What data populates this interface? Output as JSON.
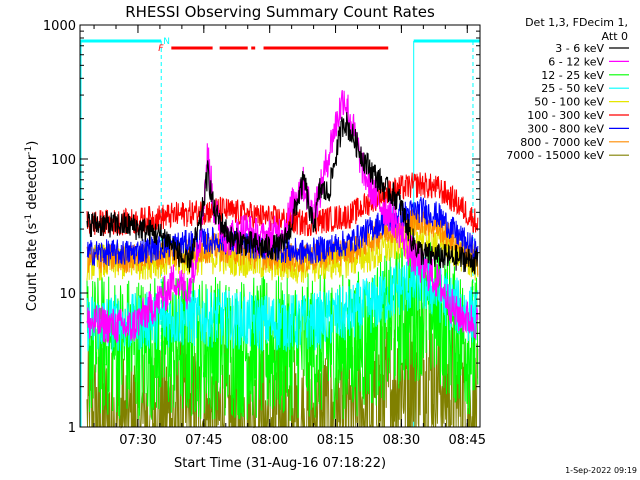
{
  "chart_data": {
    "type": "line",
    "title": "RHESSI Observing Summary Count Rates",
    "xlabel": "Start Time (31-Aug-16 07:18:22)",
    "ylabel_main": "Count Rate (s",
    "ylabel_sup1": "-1",
    "ylabel_mid": " detector",
    "ylabel_sup2": "-1",
    "ylabel_end": ")",
    "y_scale": "log",
    "ylim": [
      1,
      1000
    ],
    "xlim_minutes": [
      -1.6,
      89.5
    ],
    "y_ticks": [
      {
        "value": 1,
        "label": "1"
      },
      {
        "value": 10,
        "label": "10"
      },
      {
        "value": 100,
        "label": "100"
      },
      {
        "value": 1000,
        "label": "1000"
      }
    ],
    "x_ticks": [
      {
        "minute": 11.6,
        "label": "07:30"
      },
      {
        "minute": 26.6,
        "label": "07:45"
      },
      {
        "minute": 41.6,
        "label": "08:00"
      },
      {
        "minute": 56.6,
        "label": "08:15"
      },
      {
        "minute": 71.6,
        "label": "08:30"
      },
      {
        "minute": 86.6,
        "label": "08:45"
      }
    ],
    "legend_header": [
      "Det 1,3, FDecim 1,",
      "Att 0"
    ],
    "legend_placement": "right",
    "series": [
      {
        "name": "3 - 6 keV",
        "color": "#000000",
        "points": [
          [
            0,
            33
          ],
          [
            10,
            32
          ],
          [
            18,
            26
          ],
          [
            23,
            16
          ],
          [
            26,
            35
          ],
          [
            27.5,
            80
          ],
          [
            29,
            40
          ],
          [
            33,
            25
          ],
          [
            40,
            22
          ],
          [
            44,
            22
          ],
          [
            46,
            28
          ],
          [
            48,
            50
          ],
          [
            49.5,
            70
          ],
          [
            51,
            35
          ],
          [
            52,
            35
          ],
          [
            53,
            60
          ],
          [
            55,
            55
          ],
          [
            57,
            120
          ],
          [
            58.5,
            200
          ],
          [
            60,
            160
          ],
          [
            63,
            100
          ],
          [
            65,
            80
          ],
          [
            68,
            60
          ],
          [
            71,
            50
          ],
          [
            74,
            25
          ],
          [
            76,
            20
          ],
          [
            78,
            19
          ],
          [
            86,
            18
          ],
          [
            89,
            17
          ]
        ]
      },
      {
        "name": "6 - 12 keV",
        "color": "#ff00ff",
        "points": [
          [
            0,
            6
          ],
          [
            10,
            5.5
          ],
          [
            18,
            10
          ],
          [
            20,
            13
          ],
          [
            23,
            10
          ],
          [
            26,
            30
          ],
          [
            27.5,
            110
          ],
          [
            29,
            40
          ],
          [
            32,
            25
          ],
          [
            36,
            30
          ],
          [
            40,
            25
          ],
          [
            45,
            30
          ],
          [
            48,
            60
          ],
          [
            49.5,
            65
          ],
          [
            51,
            40
          ],
          [
            53,
            55
          ],
          [
            56,
            150
          ],
          [
            58.5,
            300
          ],
          [
            60,
            200
          ],
          [
            63,
            80
          ],
          [
            66,
            50
          ],
          [
            70,
            35
          ],
          [
            73,
            22
          ],
          [
            75,
            17
          ],
          [
            80,
            12
          ],
          [
            84,
            7
          ],
          [
            89,
            6
          ]
        ]
      },
      {
        "name": "12 - 25 keV",
        "color": "#00ff00",
        "points": [
          [
            0,
            4
          ],
          [
            10,
            4
          ],
          [
            20,
            4
          ],
          [
            30,
            4
          ],
          [
            40,
            3.8
          ],
          [
            50,
            4
          ],
          [
            60,
            4
          ],
          [
            66,
            5
          ],
          [
            71,
            6.5
          ],
          [
            76,
            8
          ],
          [
            80,
            7
          ],
          [
            84,
            5
          ],
          [
            89,
            3.8
          ]
        ]
      },
      {
        "name": "25 - 50 keV",
        "color": "#00ffff",
        "points": [
          [
            0,
            6
          ],
          [
            10,
            6
          ],
          [
            20,
            6.5
          ],
          [
            30,
            6.5
          ],
          [
            40,
            6
          ],
          [
            50,
            6
          ],
          [
            60,
            7
          ],
          [
            66,
            8.5
          ],
          [
            71,
            11
          ],
          [
            76,
            12
          ],
          [
            80,
            10
          ],
          [
            84,
            8
          ],
          [
            89,
            6.5
          ]
        ]
      },
      {
        "name": "50 - 100 keV",
        "color": "#e6e600",
        "points": [
          [
            0,
            17
          ],
          [
            10,
            17
          ],
          [
            20,
            18
          ],
          [
            30,
            19
          ],
          [
            40,
            17
          ],
          [
            50,
            16
          ],
          [
            60,
            18
          ],
          [
            66,
            20
          ],
          [
            71,
            24
          ],
          [
            76,
            27
          ],
          [
            80,
            25
          ],
          [
            84,
            21
          ],
          [
            89,
            16
          ]
        ]
      },
      {
        "name": "100 - 300 keV",
        "color": "#ff0000",
        "points": [
          [
            0,
            33
          ],
          [
            10,
            34
          ],
          [
            20,
            38
          ],
          [
            30,
            42
          ],
          [
            40,
            37
          ],
          [
            50,
            33
          ],
          [
            60,
            38
          ],
          [
            66,
            52
          ],
          [
            71,
            60
          ],
          [
            76,
            65
          ],
          [
            80,
            60
          ],
          [
            84,
            48
          ],
          [
            89,
            33
          ]
        ]
      },
      {
        "name": "300 - 800 keV",
        "color": "#0000ff",
        "points": [
          [
            0,
            20
          ],
          [
            10,
            20
          ],
          [
            20,
            23
          ],
          [
            30,
            25
          ],
          [
            40,
            22
          ],
          [
            50,
            20
          ],
          [
            60,
            24
          ],
          [
            66,
            32
          ],
          [
            71,
            38
          ],
          [
            76,
            42
          ],
          [
            80,
            38
          ],
          [
            84,
            28
          ],
          [
            89,
            20
          ]
        ]
      },
      {
        "name": "800 - 7000 keV",
        "color": "#ff8c00",
        "points": [
          [
            0,
            18
          ],
          [
            10,
            18
          ],
          [
            20,
            20
          ],
          [
            30,
            22
          ],
          [
            40,
            19
          ],
          [
            50,
            18
          ],
          [
            60,
            21
          ],
          [
            66,
            27
          ],
          [
            71,
            32
          ],
          [
            76,
            35
          ],
          [
            80,
            31
          ],
          [
            84,
            24
          ],
          [
            89,
            17
          ]
        ]
      },
      {
        "name": "7000 - 15000 keV",
        "color": "#808000",
        "points": [
          [
            0,
            1.05
          ],
          [
            10,
            1.05
          ],
          [
            20,
            1.2
          ],
          [
            30,
            1.1
          ],
          [
            40,
            1.05
          ],
          [
            50,
            1.05
          ],
          [
            60,
            1.1
          ],
          [
            66,
            1.5
          ],
          [
            71,
            2.2
          ],
          [
            76,
            3
          ],
          [
            80,
            2.4
          ],
          [
            84,
            1.6
          ],
          [
            89,
            1.05
          ]
        ]
      }
    ],
    "annotations": {
      "night_label": "N",
      "flare_label": "F",
      "night_color": "#00ffff",
      "flare_color": "#ff0000",
      "night_intervals_minutes": [
        [
          -1.6,
          16.9
        ],
        [
          74.4,
          89.5
        ]
      ],
      "night_vlines_minutes": [
        16.9,
        87.9
      ],
      "saa_vline_minutes": 74.4,
      "flare_segments_minutes": [
        [
          19.2,
          28.6
        ],
        [
          30.2,
          36.6
        ],
        [
          37.4,
          38.3
        ],
        [
          40.2,
          68.6
        ]
      ]
    }
  },
  "footer": {
    "timestamp": "1-Sep-2022 09:19"
  }
}
